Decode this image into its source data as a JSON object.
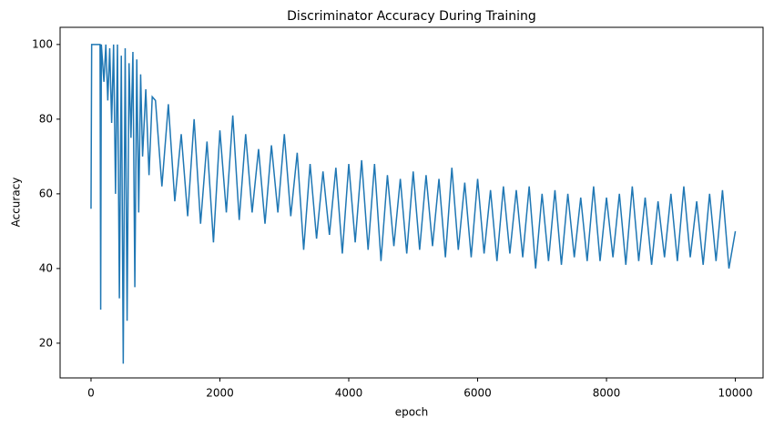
{
  "chart_data": {
    "type": "line",
    "title": "Discriminator Accuracy During Training",
    "xlabel": "epoch",
    "ylabel": "Accuracy",
    "color": "#1f77b4",
    "grid": false,
    "x": [
      0,
      10,
      140,
      150,
      160,
      200,
      230,
      260,
      290,
      320,
      350,
      380,
      410,
      440,
      470,
      500,
      530,
      560,
      590,
      620,
      650,
      680,
      710,
      740,
      770,
      800,
      850,
      900,
      950,
      1000,
      1100,
      1200,
      1300,
      1400,
      1500,
      1600,
      1700,
      1800,
      1900,
      2000,
      2100,
      2200,
      2300,
      2400,
      2500,
      2600,
      2700,
      2800,
      2900,
      3000,
      3100,
      3200,
      3300,
      3400,
      3500,
      3600,
      3700,
      3800,
      3900,
      4000,
      4100,
      4200,
      4300,
      4400,
      4500,
      4600,
      4700,
      4800,
      4900,
      5000,
      5100,
      5200,
      5300,
      5400,
      5500,
      5600,
      5700,
      5800,
      5900,
      6000,
      6100,
      6200,
      6300,
      6400,
      6500,
      6600,
      6700,
      6800,
      6900,
      7000,
      7100,
      7200,
      7300,
      7400,
      7500,
      7600,
      7700,
      7800,
      7900,
      8000,
      8100,
      8200,
      8300,
      8400,
      8500,
      8600,
      8700,
      8800,
      8900,
      9000,
      9100,
      9200,
      9300,
      9400,
      9500,
      9600,
      9700,
      9800,
      9900,
      10000
    ],
    "values": [
      56,
      100,
      100,
      29,
      100,
      90,
      100,
      85,
      99,
      79,
      100,
      60,
      100,
      32,
      97,
      14.5,
      99,
      26,
      95,
      75,
      98,
      35,
      96,
      55,
      92,
      70,
      88,
      65,
      86,
      85,
      62,
      84,
      58,
      76,
      54,
      80,
      52,
      74,
      47,
      77,
      55,
      81,
      53,
      76,
      55,
      72,
      52,
      73,
      55,
      76,
      54,
      71,
      45,
      68,
      48,
      66,
      49,
      67,
      44,
      68,
      47,
      69,
      45,
      68,
      42,
      65,
      46,
      64,
      44,
      66,
      45,
      65,
      46,
      64,
      43,
      67,
      45,
      63,
      43,
      64,
      44,
      61,
      42,
      62,
      44,
      61,
      43,
      62,
      40,
      60,
      42,
      61,
      41,
      60,
      43,
      59,
      42,
      62,
      42,
      59,
      43,
      60,
      41,
      62,
      42,
      59,
      41,
      58,
      43,
      60,
      42,
      62,
      43,
      58,
      41,
      60,
      42,
      61,
      40,
      50
    ],
    "xlim": [
      -480,
      10430
    ],
    "ylim": [
      10.7,
      104.6
    ],
    "xticks": [
      0,
      2000,
      4000,
      6000,
      8000,
      10000
    ],
    "yticks": [
      20,
      40,
      60,
      80,
      100
    ]
  }
}
